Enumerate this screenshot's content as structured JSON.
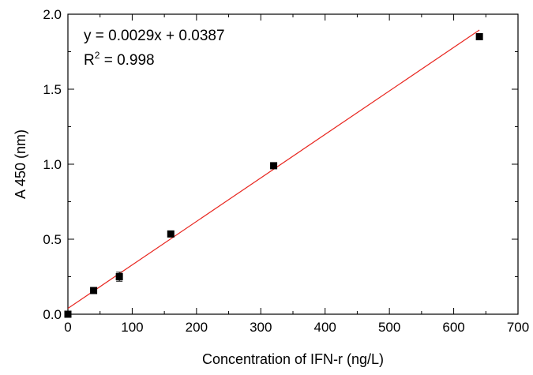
{
  "chart_data": {
    "type": "scatter",
    "title": "",
    "xlabel": "Concentration of IFN-r (ng/L)",
    "ylabel": "A 450 (nm)",
    "xlim": [
      0,
      700
    ],
    "ylim": [
      0.0,
      2.0
    ],
    "xticks": [
      "0",
      "100",
      "200",
      "300",
      "400",
      "500",
      "600",
      "700"
    ],
    "yticks": [
      "0.0",
      "0.5",
      "1.0",
      "1.5",
      "2.0"
    ],
    "grid": false,
    "legend": "none",
    "series": [
      {
        "x": [
          0,
          40,
          80,
          160,
          320,
          640
        ],
        "y": [
          0.0,
          0.158,
          0.25,
          0.535,
          0.99,
          1.85
        ],
        "yerr": [
          0.0,
          0.012,
          0.03,
          0.012,
          0.012,
          0.012
        ],
        "marker": "square",
        "color": "#000000"
      }
    ],
    "fit_line": {
      "slope": 0.0029,
      "intercept": 0.0387,
      "x_range": [
        0,
        640
      ],
      "color": "#e8261f"
    },
    "annotations": {
      "equation": "y = 0.0029x + 0.0387",
      "r2_base": "R",
      "r2_sup": "2",
      "r2_value": " = 0.998"
    }
  }
}
